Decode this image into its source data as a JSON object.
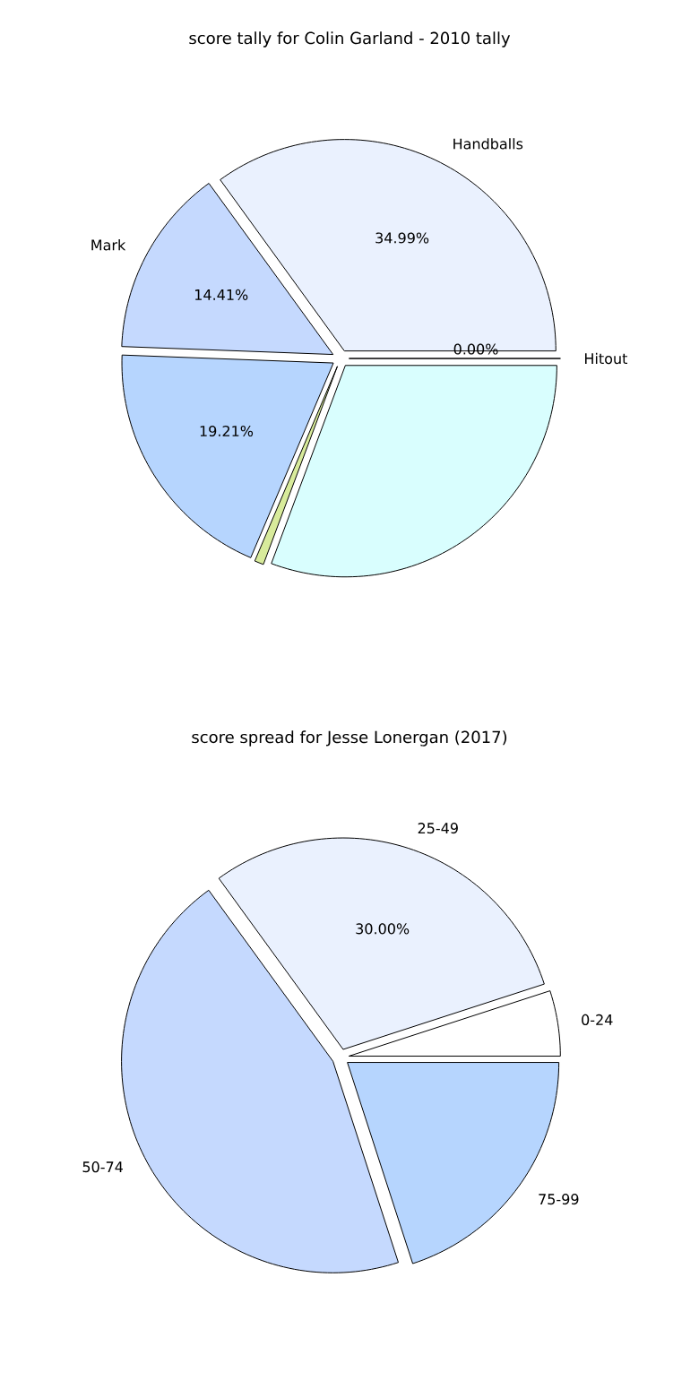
{
  "chart_data": [
    {
      "type": "pie",
      "title": "score tally for Colin Garland - 2010 tally",
      "categories": [
        "Handballs",
        "Mark",
        null,
        null,
        null,
        "Hitout"
      ],
      "values": [
        34.99,
        14.41,
        19.21,
        0.7,
        30.69,
        0
      ],
      "value_labels": [
        "34.99%",
        "14.41%",
        "19.21%",
        null,
        null,
        "0.00%"
      ],
      "colors": [
        "#eaf1fe",
        "#c5d9fe",
        "#b6d5fe",
        "#d8eb9b",
        "#d9fefe",
        "#c8c8c8"
      ]
    },
    {
      "type": "pie",
      "title": "score spread for Jesse Lonergan (2017)",
      "categories": [
        "0-24",
        "25-49",
        "50-74",
        "75-99"
      ],
      "values": [
        5,
        30,
        45,
        20
      ],
      "value_labels": [
        null,
        "30.00%",
        null,
        null
      ],
      "colors": [
        "#ffffff",
        "#eaf1fe",
        "#c5d9fe",
        "#b6d5fe"
      ]
    }
  ]
}
